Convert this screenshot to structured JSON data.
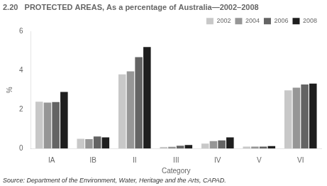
{
  "chart_data": {
    "type": "bar",
    "title": "2.20   PROTECTED AREAS, As a percentage of Australia—2002–2008",
    "xlabel": "Category",
    "ylabel": "%",
    "source": "Source: Department of the Environment, Water, Heritage and the Arts, CAPAD.",
    "categories": [
      "IA",
      "IB",
      "II",
      "III",
      "IV",
      "V",
      "VI"
    ],
    "series": [
      {
        "name": "2002",
        "color": "#c8c8c8",
        "values": [
          2.4,
          0.5,
          3.8,
          0.08,
          0.25,
          0.1,
          2.98
        ]
      },
      {
        "name": "2004",
        "color": "#969696",
        "values": [
          2.35,
          0.48,
          3.95,
          0.09,
          0.38,
          0.1,
          3.12
        ]
      },
      {
        "name": "2006",
        "color": "#646464",
        "values": [
          2.38,
          0.62,
          4.68,
          0.14,
          0.42,
          0.1,
          3.28
        ]
      },
      {
        "name": "2008",
        "color": "#1e1e1e",
        "values": [
          2.9,
          0.57,
          5.2,
          0.18,
          0.57,
          0.13,
          3.33
        ]
      }
    ],
    "ylim": [
      0,
      6
    ],
    "yticks": [
      0,
      2,
      4,
      6
    ],
    "grid": false,
    "legend": "upper right"
  }
}
